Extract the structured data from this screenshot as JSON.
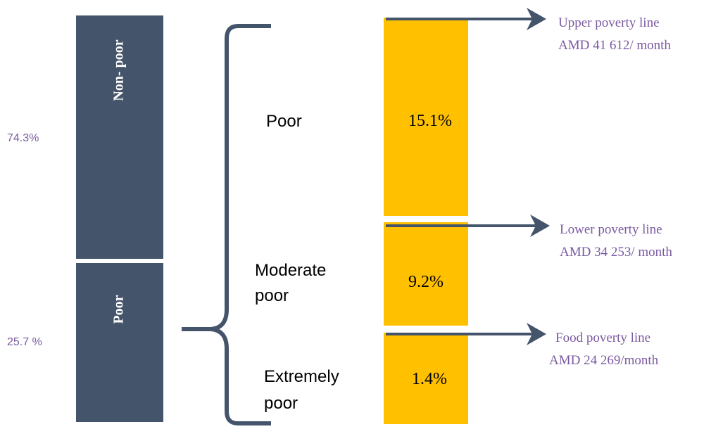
{
  "left_bar": {
    "segments": [
      {
        "label": "Non- poor",
        "share": "74.3%"
      },
      {
        "label": "Poor",
        "share": "25.7 %"
      }
    ]
  },
  "groups": [
    {
      "label": [
        "Poor"
      ],
      "value": "15.1%"
    },
    {
      "label": [
        "Moderate",
        "poor"
      ],
      "value": "9.2%"
    },
    {
      "label": [
        "Extremely",
        "poor"
      ],
      "value": "1.4%"
    }
  ],
  "lines": [
    {
      "name": "Upper poverty line",
      "amount": "AMD 41 612/ month"
    },
    {
      "name": "Lower poverty line",
      "amount": "AMD 34 253/ month"
    },
    {
      "name": "Food poverty line",
      "amount": "AMD 24 269/month"
    }
  ]
}
